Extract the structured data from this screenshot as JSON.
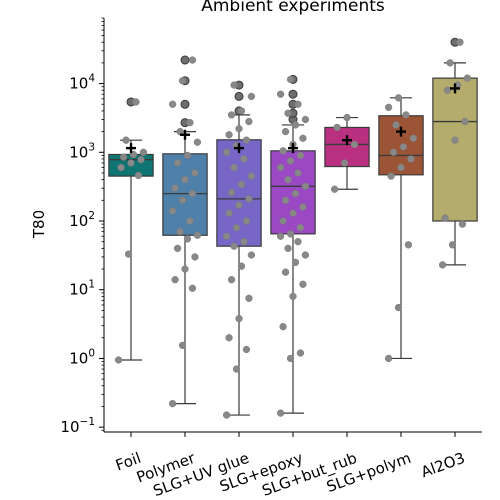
{
  "chart_data": {
    "type": "box",
    "title": "Ambient experiments",
    "xlabel": "",
    "ylabel": "T80",
    "yscale": "log",
    "ylim": [
      0.085,
      90000
    ],
    "y_ticks": [
      {
        "value": 0.1,
        "base": "10",
        "exp": "−1"
      },
      {
        "value": 1,
        "base": "10",
        "exp": "0"
      },
      {
        "value": 10,
        "base": "10",
        "exp": "1"
      },
      {
        "value": 100,
        "base": "10",
        "exp": "2"
      },
      {
        "value": 1000,
        "base": "10",
        "exp": "3"
      },
      {
        "value": 10000,
        "base": "10",
        "exp": "4"
      }
    ],
    "categories": [
      "Foil",
      "Polymer",
      "SLG+UV glue",
      "SLG+epoxy",
      "SLG+but_rub",
      "SLG+polym",
      "Al2O3"
    ],
    "colors": [
      "#0f7572",
      "#4e80aa",
      "#7766c6",
      "#9a48c4",
      "#b8307f",
      "#9b5536",
      "#b4ac6c"
    ],
    "boxes": [
      {
        "whisker_low": 0.95,
        "q1": 450,
        "median": 780,
        "q3": 930,
        "whisker_high": 1500,
        "mean": 1150,
        "outliers_high": [
          5400
        ],
        "outliers_low": [],
        "points": [
          0.95,
          33,
          460,
          600,
          700,
          780,
          850,
          930,
          1000,
          1500,
          5400
        ]
      },
      {
        "whisker_low": 0.22,
        "q1": 62,
        "median": 250,
        "q3": 950,
        "whisker_high": 2000,
        "mean": 1800,
        "outliers_high": [
          2700,
          5000,
          11000,
          22000
        ],
        "outliers_low": [],
        "points": [
          0.22,
          1.55,
          10.5,
          14,
          20,
          30,
          40,
          55,
          62,
          70,
          100,
          140,
          200,
          250,
          300,
          400,
          500,
          700,
          900,
          1400,
          2000,
          2700,
          5000,
          11000,
          22000
        ]
      },
      {
        "whisker_low": 0.15,
        "q1": 43,
        "median": 210,
        "q3": 1520,
        "whisker_high": 3500,
        "mean": 1150,
        "outliers_high": [
          4000,
          6500,
          9500
        ],
        "outliers_low": [],
        "points": [
          0.15,
          0.7,
          1.35,
          2.0,
          3.8,
          7.5,
          14,
          22,
          32,
          43,
          50,
          60,
          80,
          100,
          130,
          170,
          210,
          260,
          340,
          450,
          600,
          800,
          1000,
          1250,
          1500,
          1800,
          2200,
          2800,
          3500,
          4000,
          6500,
          9500
        ]
      },
      {
        "whisker_low": 0.16,
        "q1": 65,
        "median": 320,
        "q3": 1050,
        "whisker_high": 2500,
        "mean": 1150,
        "outliers_high": [
          3000,
          3700,
          5000,
          7000,
          11500
        ],
        "outliers_low": [],
        "points": [
          0.16,
          1.0,
          1.2,
          2.9,
          8,
          12,
          18,
          25,
          32,
          40,
          50,
          60,
          65,
          80,
          100,
          130,
          160,
          200,
          250,
          320,
          400,
          500,
          600,
          750,
          900,
          1050,
          1300,
          1600,
          2000,
          2500,
          3000,
          3700,
          5000,
          7000,
          11500
        ]
      },
      {
        "whisker_low": 290,
        "q1": 620,
        "median": 1300,
        "q3": 2300,
        "whisker_high": 3200,
        "mean": 1500,
        "outliers_high": [],
        "outliers_low": [],
        "points": [
          290,
          700,
          1300,
          2300,
          3200
        ]
      },
      {
        "whisker_low": 1.0,
        "q1": 470,
        "median": 900,
        "q3": 3400,
        "whisker_high": 6200,
        "mean": 2000,
        "outliers_high": [],
        "outliers_low": [],
        "points": [
          1.0,
          5.5,
          45,
          450,
          600,
          800,
          1000,
          1200,
          1600,
          2500,
          3500,
          4500,
          6200
        ]
      },
      {
        "whisker_low": 23,
        "q1": 100,
        "median": 2800,
        "q3": 12000,
        "whisker_high": 20000,
        "mean": 8500,
        "outliers_high": [
          40000
        ],
        "outliers_low": [],
        "points": [
          23,
          45,
          90,
          110,
          1500,
          2800,
          8000,
          9500,
          12000,
          20000,
          40000
        ]
      }
    ]
  }
}
